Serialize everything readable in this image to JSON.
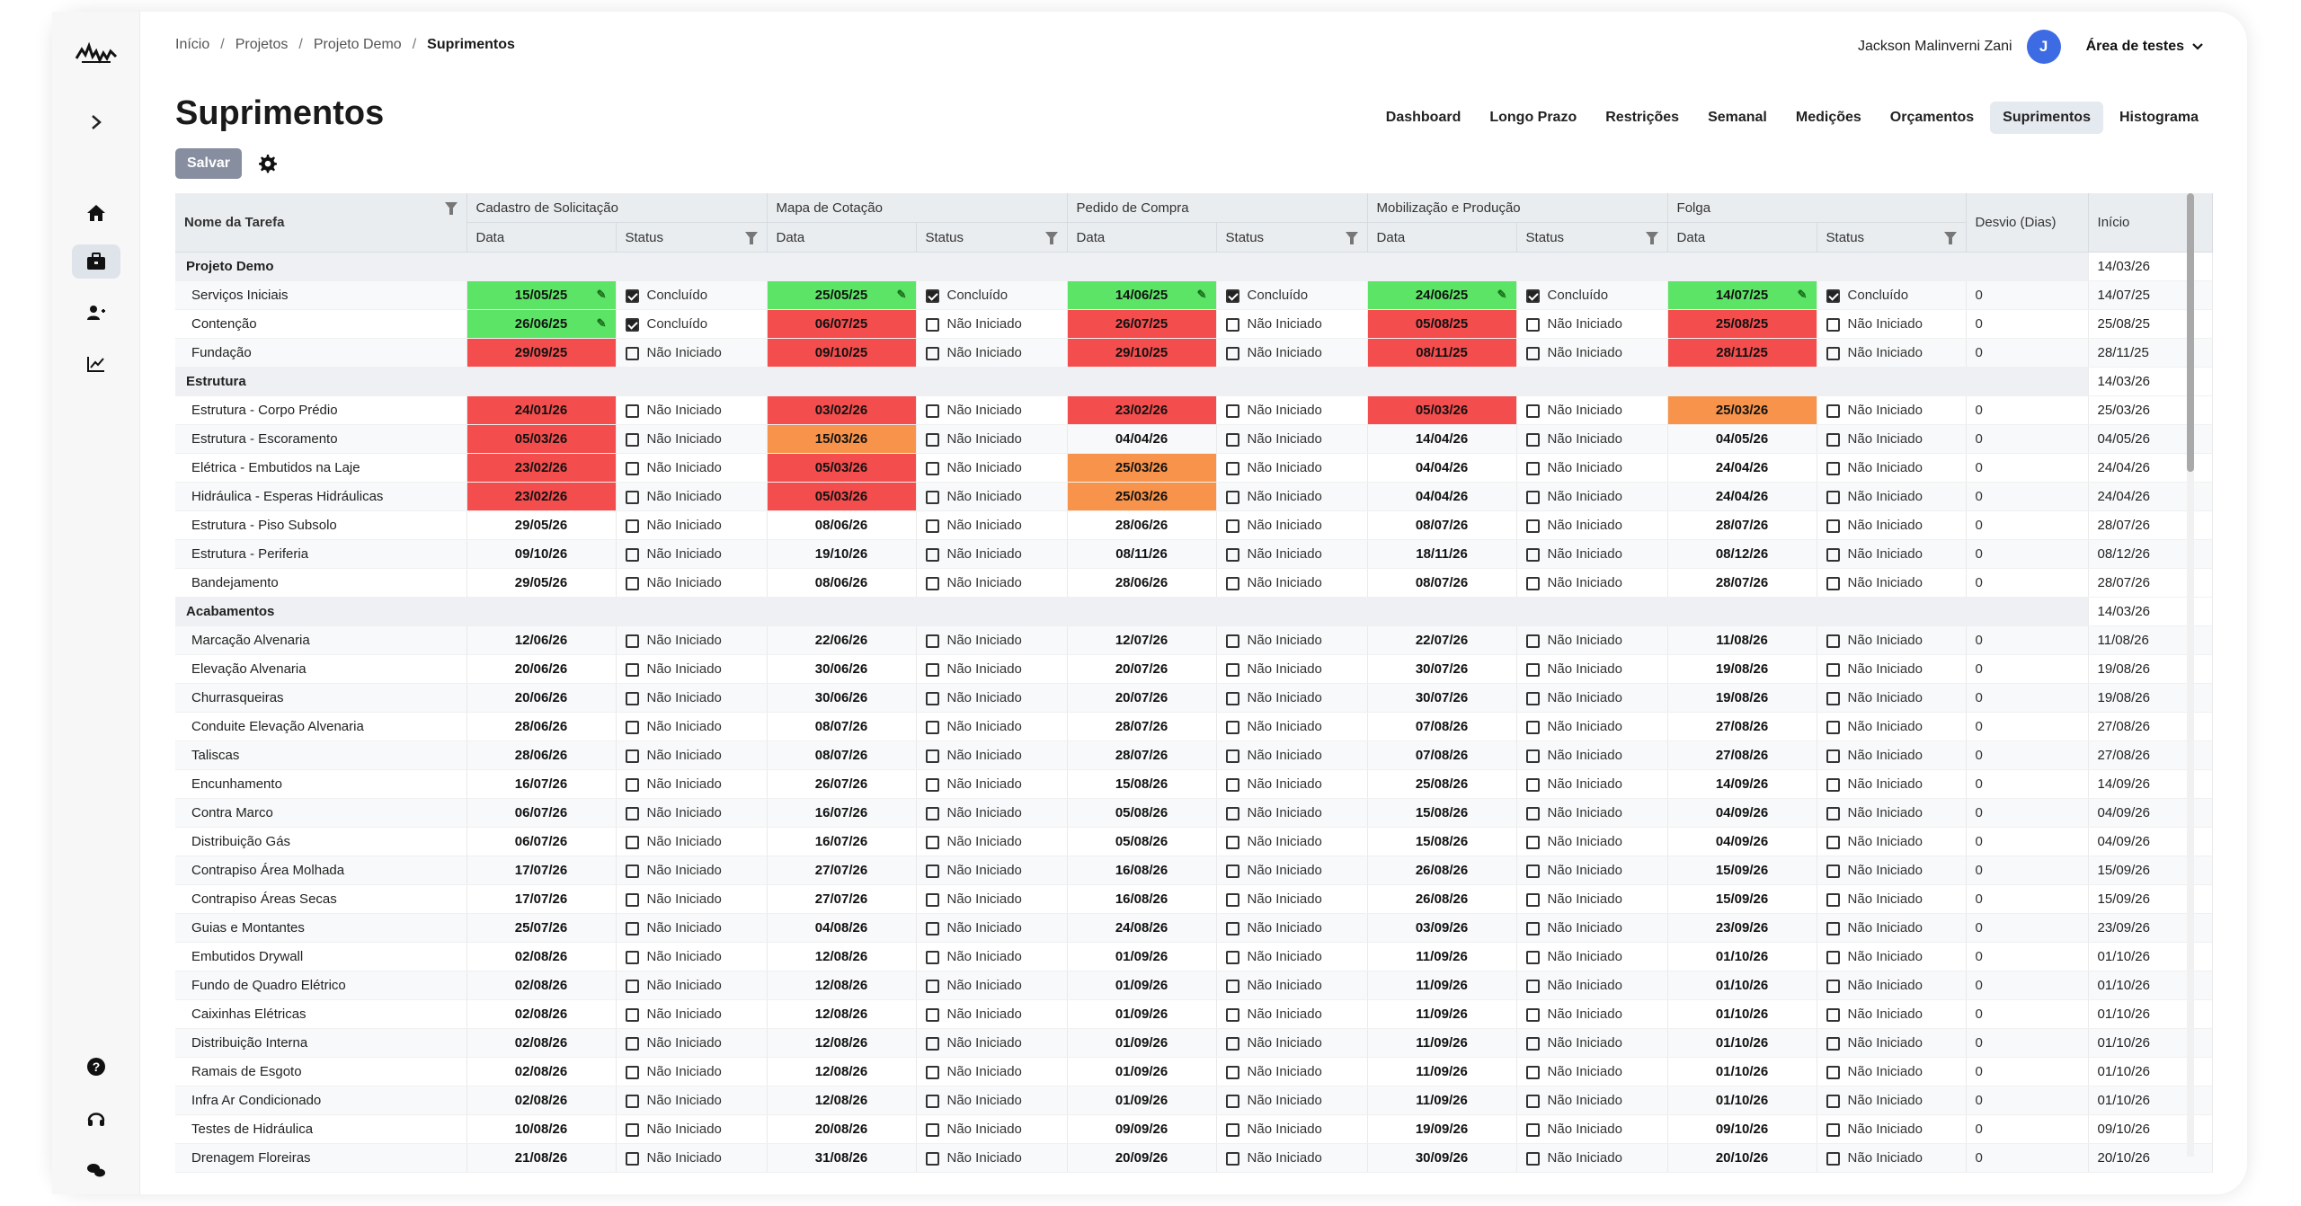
{
  "breadcrumb": [
    "Início",
    "Projetos",
    "Projeto Demo",
    "Suprimentos"
  ],
  "user": {
    "name": "Jackson Malinverni Zani",
    "initial": "J",
    "workspace": "Área de testes"
  },
  "page_title": "Suprimentos",
  "tabs": [
    "Dashboard",
    "Longo Prazo",
    "Restrições",
    "Semanal",
    "Medições",
    "Orçamentos",
    "Suprimentos",
    "Histograma"
  ],
  "active_tab": "Suprimentos",
  "save_label": "Salvar",
  "columns": {
    "task": "Nome da Tarefa",
    "groups": [
      "Cadastro de Solicitação",
      "Mapa de Cotação",
      "Pedido de Compra",
      "Mobilização e Produção",
      "Folga"
    ],
    "date": "Data",
    "status": "Status",
    "desvio": "Desvio (Dias)",
    "inicio": "Início"
  },
  "colors": {
    "green": "#5ce466",
    "red": "#f44d4d",
    "orange": "#f7934a",
    "accent": "#3d6be3"
  },
  "rows": [
    {
      "type": "group",
      "name": "Projeto Demo",
      "inicio": "14/03/26"
    },
    {
      "type": "task",
      "name": "Serviços Iniciais",
      "cells": [
        [
          "15/05/25",
          "green",
          "Concluído",
          true
        ],
        [
          "25/05/25",
          "green",
          "Concluído",
          true
        ],
        [
          "14/06/25",
          "green",
          "Concluído",
          true
        ],
        [
          "24/06/25",
          "green",
          "Concluído",
          true
        ],
        [
          "14/07/25",
          "green",
          "Concluído",
          true
        ]
      ],
      "desvio": "0",
      "inicio": "14/07/25"
    },
    {
      "type": "task",
      "name": "Contenção",
      "cells": [
        [
          "26/06/25",
          "green",
          "Concluído",
          true
        ],
        [
          "06/07/25",
          "red",
          "Não Iniciado",
          false
        ],
        [
          "26/07/25",
          "red",
          "Não Iniciado",
          false
        ],
        [
          "05/08/25",
          "red",
          "Não Iniciado",
          false
        ],
        [
          "25/08/25",
          "red",
          "Não Iniciado",
          false
        ]
      ],
      "desvio": "0",
      "inicio": "25/08/25"
    },
    {
      "type": "task",
      "name": "Fundação",
      "cells": [
        [
          "29/09/25",
          "red",
          "Não Iniciado",
          false
        ],
        [
          "09/10/25",
          "red",
          "Não Iniciado",
          false
        ],
        [
          "29/10/25",
          "red",
          "Não Iniciado",
          false
        ],
        [
          "08/11/25",
          "red",
          "Não Iniciado",
          false
        ],
        [
          "28/11/25",
          "red",
          "Não Iniciado",
          false
        ]
      ],
      "desvio": "0",
      "inicio": "28/11/25"
    },
    {
      "type": "group",
      "name": "Estrutura",
      "inicio": "14/03/26"
    },
    {
      "type": "task",
      "name": "Estrutura - Corpo Prédio",
      "cells": [
        [
          "24/01/26",
          "red",
          "Não Iniciado",
          false
        ],
        [
          "03/02/26",
          "red",
          "Não Iniciado",
          false
        ],
        [
          "23/02/26",
          "red",
          "Não Iniciado",
          false
        ],
        [
          "05/03/26",
          "red",
          "Não Iniciado",
          false
        ],
        [
          "25/03/26",
          "orange",
          "Não Iniciado",
          false
        ]
      ],
      "desvio": "0",
      "inicio": "25/03/26"
    },
    {
      "type": "task",
      "name": "Estrutura - Escoramento",
      "cells": [
        [
          "05/03/26",
          "red",
          "Não Iniciado",
          false
        ],
        [
          "15/03/26",
          "orange",
          "Não Iniciado",
          false
        ],
        [
          "04/04/26",
          "",
          "Não Iniciado",
          false
        ],
        [
          "14/04/26",
          "",
          "Não Iniciado",
          false
        ],
        [
          "04/05/26",
          "",
          "Não Iniciado",
          false
        ]
      ],
      "desvio": "0",
      "inicio": "04/05/26"
    },
    {
      "type": "task",
      "name": "Elétrica - Embutidos na Laje",
      "cells": [
        [
          "23/02/26",
          "red",
          "Não Iniciado",
          false
        ],
        [
          "05/03/26",
          "red",
          "Não Iniciado",
          false
        ],
        [
          "25/03/26",
          "orange",
          "Não Iniciado",
          false
        ],
        [
          "04/04/26",
          "",
          "Não Iniciado",
          false
        ],
        [
          "24/04/26",
          "",
          "Não Iniciado",
          false
        ]
      ],
      "desvio": "0",
      "inicio": "24/04/26"
    },
    {
      "type": "task",
      "name": "Hidráulica - Esperas Hidráulicas",
      "cells": [
        [
          "23/02/26",
          "red",
          "Não Iniciado",
          false
        ],
        [
          "05/03/26",
          "red",
          "Não Iniciado",
          false
        ],
        [
          "25/03/26",
          "orange",
          "Não Iniciado",
          false
        ],
        [
          "04/04/26",
          "",
          "Não Iniciado",
          false
        ],
        [
          "24/04/26",
          "",
          "Não Iniciado",
          false
        ]
      ],
      "desvio": "0",
      "inicio": "24/04/26"
    },
    {
      "type": "task",
      "name": "Estrutura - Piso Subsolo",
      "cells": [
        [
          "29/05/26",
          "",
          "Não Iniciado",
          false
        ],
        [
          "08/06/26",
          "",
          "Não Iniciado",
          false
        ],
        [
          "28/06/26",
          "",
          "Não Iniciado",
          false
        ],
        [
          "08/07/26",
          "",
          "Não Iniciado",
          false
        ],
        [
          "28/07/26",
          "",
          "Não Iniciado",
          false
        ]
      ],
      "desvio": "0",
      "inicio": "28/07/26"
    },
    {
      "type": "task",
      "name": "Estrutura - Periferia",
      "cells": [
        [
          "09/10/26",
          "",
          "Não Iniciado",
          false
        ],
        [
          "19/10/26",
          "",
          "Não Iniciado",
          false
        ],
        [
          "08/11/26",
          "",
          "Não Iniciado",
          false
        ],
        [
          "18/11/26",
          "",
          "Não Iniciado",
          false
        ],
        [
          "08/12/26",
          "",
          "Não Iniciado",
          false
        ]
      ],
      "desvio": "0",
      "inicio": "08/12/26"
    },
    {
      "type": "task",
      "name": "Bandejamento",
      "cells": [
        [
          "29/05/26",
          "",
          "Não Iniciado",
          false
        ],
        [
          "08/06/26",
          "",
          "Não Iniciado",
          false
        ],
        [
          "28/06/26",
          "",
          "Não Iniciado",
          false
        ],
        [
          "08/07/26",
          "",
          "Não Iniciado",
          false
        ],
        [
          "28/07/26",
          "",
          "Não Iniciado",
          false
        ]
      ],
      "desvio": "0",
      "inicio": "28/07/26"
    },
    {
      "type": "group",
      "name": "Acabamentos",
      "inicio": "14/03/26"
    },
    {
      "type": "task",
      "name": "Marcação Alvenaria",
      "cells": [
        [
          "12/06/26",
          "",
          "Não Iniciado",
          false
        ],
        [
          "22/06/26",
          "",
          "Não Iniciado",
          false
        ],
        [
          "12/07/26",
          "",
          "Não Iniciado",
          false
        ],
        [
          "22/07/26",
          "",
          "Não Iniciado",
          false
        ],
        [
          "11/08/26",
          "",
          "Não Iniciado",
          false
        ]
      ],
      "desvio": "0",
      "inicio": "11/08/26"
    },
    {
      "type": "task",
      "name": "Elevação Alvenaria",
      "cells": [
        [
          "20/06/26",
          "",
          "Não Iniciado",
          false
        ],
        [
          "30/06/26",
          "",
          "Não Iniciado",
          false
        ],
        [
          "20/07/26",
          "",
          "Não Iniciado",
          false
        ],
        [
          "30/07/26",
          "",
          "Não Iniciado",
          false
        ],
        [
          "19/08/26",
          "",
          "Não Iniciado",
          false
        ]
      ],
      "desvio": "0",
      "inicio": "19/08/26"
    },
    {
      "type": "task",
      "name": "Churrasqueiras",
      "cells": [
        [
          "20/06/26",
          "",
          "Não Iniciado",
          false
        ],
        [
          "30/06/26",
          "",
          "Não Iniciado",
          false
        ],
        [
          "20/07/26",
          "",
          "Não Iniciado",
          false
        ],
        [
          "30/07/26",
          "",
          "Não Iniciado",
          false
        ],
        [
          "19/08/26",
          "",
          "Não Iniciado",
          false
        ]
      ],
      "desvio": "0",
      "inicio": "19/08/26"
    },
    {
      "type": "task",
      "name": "Conduite Elevação Alvenaria",
      "cells": [
        [
          "28/06/26",
          "",
          "Não Iniciado",
          false
        ],
        [
          "08/07/26",
          "",
          "Não Iniciado",
          false
        ],
        [
          "28/07/26",
          "",
          "Não Iniciado",
          false
        ],
        [
          "07/08/26",
          "",
          "Não Iniciado",
          false
        ],
        [
          "27/08/26",
          "",
          "Não Iniciado",
          false
        ]
      ],
      "desvio": "0",
      "inicio": "27/08/26"
    },
    {
      "type": "task",
      "name": "Taliscas",
      "cells": [
        [
          "28/06/26",
          "",
          "Não Iniciado",
          false
        ],
        [
          "08/07/26",
          "",
          "Não Iniciado",
          false
        ],
        [
          "28/07/26",
          "",
          "Não Iniciado",
          false
        ],
        [
          "07/08/26",
          "",
          "Não Iniciado",
          false
        ],
        [
          "27/08/26",
          "",
          "Não Iniciado",
          false
        ]
      ],
      "desvio": "0",
      "inicio": "27/08/26"
    },
    {
      "type": "task",
      "name": "Encunhamento",
      "cells": [
        [
          "16/07/26",
          "",
          "Não Iniciado",
          false
        ],
        [
          "26/07/26",
          "",
          "Não Iniciado",
          false
        ],
        [
          "15/08/26",
          "",
          "Não Iniciado",
          false
        ],
        [
          "25/08/26",
          "",
          "Não Iniciado",
          false
        ],
        [
          "14/09/26",
          "",
          "Não Iniciado",
          false
        ]
      ],
      "desvio": "0",
      "inicio": "14/09/26"
    },
    {
      "type": "task",
      "name": "Contra Marco",
      "cells": [
        [
          "06/07/26",
          "",
          "Não Iniciado",
          false
        ],
        [
          "16/07/26",
          "",
          "Não Iniciado",
          false
        ],
        [
          "05/08/26",
          "",
          "Não Iniciado",
          false
        ],
        [
          "15/08/26",
          "",
          "Não Iniciado",
          false
        ],
        [
          "04/09/26",
          "",
          "Não Iniciado",
          false
        ]
      ],
      "desvio": "0",
      "inicio": "04/09/26"
    },
    {
      "type": "task",
      "name": "Distribuição Gás",
      "cells": [
        [
          "06/07/26",
          "",
          "Não Iniciado",
          false
        ],
        [
          "16/07/26",
          "",
          "Não Iniciado",
          false
        ],
        [
          "05/08/26",
          "",
          "Não Iniciado",
          false
        ],
        [
          "15/08/26",
          "",
          "Não Iniciado",
          false
        ],
        [
          "04/09/26",
          "",
          "Não Iniciado",
          false
        ]
      ],
      "desvio": "0",
      "inicio": "04/09/26"
    },
    {
      "type": "task",
      "name": "Contrapiso Área Molhada",
      "cells": [
        [
          "17/07/26",
          "",
          "Não Iniciado",
          false
        ],
        [
          "27/07/26",
          "",
          "Não Iniciado",
          false
        ],
        [
          "16/08/26",
          "",
          "Não Iniciado",
          false
        ],
        [
          "26/08/26",
          "",
          "Não Iniciado",
          false
        ],
        [
          "15/09/26",
          "",
          "Não Iniciado",
          false
        ]
      ],
      "desvio": "0",
      "inicio": "15/09/26"
    },
    {
      "type": "task",
      "name": "Contrapiso Áreas Secas",
      "cells": [
        [
          "17/07/26",
          "",
          "Não Iniciado",
          false
        ],
        [
          "27/07/26",
          "",
          "Não Iniciado",
          false
        ],
        [
          "16/08/26",
          "",
          "Não Iniciado",
          false
        ],
        [
          "26/08/26",
          "",
          "Não Iniciado",
          false
        ],
        [
          "15/09/26",
          "",
          "Não Iniciado",
          false
        ]
      ],
      "desvio": "0",
      "inicio": "15/09/26"
    },
    {
      "type": "task",
      "name": "Guias e Montantes",
      "cells": [
        [
          "25/07/26",
          "",
          "Não Iniciado",
          false
        ],
        [
          "04/08/26",
          "",
          "Não Iniciado",
          false
        ],
        [
          "24/08/26",
          "",
          "Não Iniciado",
          false
        ],
        [
          "03/09/26",
          "",
          "Não Iniciado",
          false
        ],
        [
          "23/09/26",
          "",
          "Não Iniciado",
          false
        ]
      ],
      "desvio": "0",
      "inicio": "23/09/26"
    },
    {
      "type": "task",
      "name": "Embutidos Drywall",
      "cells": [
        [
          "02/08/26",
          "",
          "Não Iniciado",
          false
        ],
        [
          "12/08/26",
          "",
          "Não Iniciado",
          false
        ],
        [
          "01/09/26",
          "",
          "Não Iniciado",
          false
        ],
        [
          "11/09/26",
          "",
          "Não Iniciado",
          false
        ],
        [
          "01/10/26",
          "",
          "Não Iniciado",
          false
        ]
      ],
      "desvio": "0",
      "inicio": "01/10/26"
    },
    {
      "type": "task",
      "name": "Fundo de Quadro Elétrico",
      "cells": [
        [
          "02/08/26",
          "",
          "Não Iniciado",
          false
        ],
        [
          "12/08/26",
          "",
          "Não Iniciado",
          false
        ],
        [
          "01/09/26",
          "",
          "Não Iniciado",
          false
        ],
        [
          "11/09/26",
          "",
          "Não Iniciado",
          false
        ],
        [
          "01/10/26",
          "",
          "Não Iniciado",
          false
        ]
      ],
      "desvio": "0",
      "inicio": "01/10/26"
    },
    {
      "type": "task",
      "name": "Caixinhas Elétricas",
      "cells": [
        [
          "02/08/26",
          "",
          "Não Iniciado",
          false
        ],
        [
          "12/08/26",
          "",
          "Não Iniciado",
          false
        ],
        [
          "01/09/26",
          "",
          "Não Iniciado",
          false
        ],
        [
          "11/09/26",
          "",
          "Não Iniciado",
          false
        ],
        [
          "01/10/26",
          "",
          "Não Iniciado",
          false
        ]
      ],
      "desvio": "0",
      "inicio": "01/10/26"
    },
    {
      "type": "task",
      "name": "Distribuição Interna",
      "cells": [
        [
          "02/08/26",
          "",
          "Não Iniciado",
          false
        ],
        [
          "12/08/26",
          "",
          "Não Iniciado",
          false
        ],
        [
          "01/09/26",
          "",
          "Não Iniciado",
          false
        ],
        [
          "11/09/26",
          "",
          "Não Iniciado",
          false
        ],
        [
          "01/10/26",
          "",
          "Não Iniciado",
          false
        ]
      ],
      "desvio": "0",
      "inicio": "01/10/26"
    },
    {
      "type": "task",
      "name": "Ramais de Esgoto",
      "cells": [
        [
          "02/08/26",
          "",
          "Não Iniciado",
          false
        ],
        [
          "12/08/26",
          "",
          "Não Iniciado",
          false
        ],
        [
          "01/09/26",
          "",
          "Não Iniciado",
          false
        ],
        [
          "11/09/26",
          "",
          "Não Iniciado",
          false
        ],
        [
          "01/10/26",
          "",
          "Não Iniciado",
          false
        ]
      ],
      "desvio": "0",
      "inicio": "01/10/26"
    },
    {
      "type": "task",
      "name": "Infra Ar Condicionado",
      "cells": [
        [
          "02/08/26",
          "",
          "Não Iniciado",
          false
        ],
        [
          "12/08/26",
          "",
          "Não Iniciado",
          false
        ],
        [
          "01/09/26",
          "",
          "Não Iniciado",
          false
        ],
        [
          "11/09/26",
          "",
          "Não Iniciado",
          false
        ],
        [
          "01/10/26",
          "",
          "Não Iniciado",
          false
        ]
      ],
      "desvio": "0",
      "inicio": "01/10/26"
    },
    {
      "type": "task",
      "name": "Testes de Hidráulica",
      "cells": [
        [
          "10/08/26",
          "",
          "Não Iniciado",
          false
        ],
        [
          "20/08/26",
          "",
          "Não Iniciado",
          false
        ],
        [
          "09/09/26",
          "",
          "Não Iniciado",
          false
        ],
        [
          "19/09/26",
          "",
          "Não Iniciado",
          false
        ],
        [
          "09/10/26",
          "",
          "Não Iniciado",
          false
        ]
      ],
      "desvio": "0",
      "inicio": "09/10/26"
    },
    {
      "type": "task",
      "name": "Drenagem Floreiras",
      "cells": [
        [
          "21/08/26",
          "",
          "Não Iniciado",
          false
        ],
        [
          "31/08/26",
          "",
          "Não Iniciado",
          false
        ],
        [
          "20/09/26",
          "",
          "Não Iniciado",
          false
        ],
        [
          "30/09/26",
          "",
          "Não Iniciado",
          false
        ],
        [
          "20/10/26",
          "",
          "Não Iniciado",
          false
        ]
      ],
      "desvio": "0",
      "inicio": "20/10/26"
    }
  ]
}
